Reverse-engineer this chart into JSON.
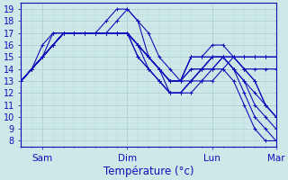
{
  "xlabel": "Température (°c)",
  "xlim": [
    0,
    72
  ],
  "ylim": [
    7.5,
    19.5
  ],
  "yticks": [
    8,
    9,
    10,
    11,
    12,
    13,
    14,
    15,
    16,
    17,
    18,
    19
  ],
  "xticks": [
    6,
    30,
    54,
    72
  ],
  "xticklabels": [
    "Sam",
    "Dim",
    "Lun",
    "Mar"
  ],
  "bg_color": "#cce8e8",
  "line_color": "#1010bb",
  "grid_major_color": "#aacccc",
  "grid_minor_color": "#bbdddd",
  "lines": [
    [
      0,
      13,
      3,
      14,
      6,
      16,
      9,
      17,
      12,
      17,
      15,
      17,
      18,
      17,
      21,
      17,
      24,
      18,
      27,
      19,
      30,
      19,
      33,
      18,
      36,
      15,
      39,
      14,
      42,
      13,
      45,
      13,
      48,
      13,
      51,
      13,
      54,
      13,
      57,
      14,
      60,
      13,
      63,
      11,
      66,
      9,
      69,
      8,
      72,
      8
    ],
    [
      0,
      13,
      3,
      14,
      6,
      15,
      9,
      17,
      12,
      17,
      15,
      17,
      18,
      17,
      21,
      17,
      24,
      17,
      27,
      18,
      30,
      19,
      33,
      18,
      36,
      17,
      39,
      15,
      42,
      14,
      45,
      13,
      48,
      14,
      51,
      14,
      54,
      14,
      57,
      15,
      60,
      14,
      63,
      12,
      66,
      10,
      69,
      9,
      72,
      8
    ],
    [
      0,
      13,
      3,
      14,
      6,
      15,
      9,
      16,
      12,
      17,
      15,
      17,
      18,
      17,
      21,
      17,
      24,
      17,
      27,
      17,
      30,
      17,
      33,
      16,
      36,
      15,
      39,
      14,
      42,
      13,
      45,
      13,
      48,
      14,
      51,
      14,
      54,
      14,
      57,
      15,
      60,
      14,
      63,
      13,
      66,
      11,
      69,
      10,
      72,
      9
    ],
    [
      0,
      13,
      3,
      14,
      6,
      15,
      9,
      16,
      12,
      17,
      15,
      17,
      18,
      17,
      21,
      17,
      24,
      17,
      27,
      17,
      30,
      17,
      33,
      16,
      36,
      15,
      39,
      14,
      42,
      13,
      45,
      13,
      48,
      15,
      51,
      15,
      54,
      15,
      57,
      15,
      60,
      14,
      63,
      13,
      66,
      12,
      69,
      11,
      72,
      10
    ],
    [
      0,
      13,
      3,
      14,
      6,
      15,
      9,
      16,
      12,
      17,
      15,
      17,
      18,
      17,
      21,
      17,
      24,
      17,
      27,
      17,
      30,
      17,
      33,
      16,
      36,
      15,
      39,
      14,
      42,
      13,
      45,
      13,
      48,
      15,
      51,
      15,
      54,
      15,
      57,
      15,
      60,
      15,
      63,
      14,
      66,
      13,
      69,
      11,
      72,
      10
    ],
    [
      0,
      13,
      3,
      14,
      6,
      15,
      9,
      16,
      12,
      17,
      15,
      17,
      18,
      17,
      21,
      17,
      24,
      17,
      27,
      17,
      30,
      17,
      33,
      16,
      36,
      15,
      39,
      14,
      42,
      13,
      45,
      13,
      48,
      15,
      51,
      15,
      54,
      16,
      57,
      16,
      60,
      15,
      63,
      14,
      66,
      13,
      69,
      11,
      72,
      10
    ],
    [
      0,
      13,
      3,
      14,
      6,
      15,
      9,
      16,
      12,
      17,
      15,
      17,
      18,
      17,
      21,
      17,
      24,
      17,
      27,
      17,
      30,
      17,
      33,
      16,
      36,
      15,
      39,
      14,
      42,
      12,
      45,
      12,
      48,
      13,
      51,
      14,
      54,
      15,
      57,
      15,
      60,
      15,
      63,
      14,
      66,
      14,
      69,
      14,
      72,
      14
    ],
    [
      0,
      13,
      3,
      14,
      6,
      15,
      9,
      16,
      12,
      17,
      15,
      17,
      18,
      17,
      21,
      17,
      24,
      17,
      27,
      17,
      30,
      17,
      33,
      16,
      36,
      14,
      39,
      13,
      42,
      12,
      45,
      12,
      48,
      13,
      51,
      14,
      54,
      15,
      57,
      15,
      60,
      15,
      63,
      15,
      66,
      15,
      69,
      15,
      72,
      15
    ],
    [
      0,
      13,
      3,
      14,
      6,
      15,
      9,
      16,
      12,
      17,
      15,
      17,
      18,
      17,
      21,
      17,
      24,
      17,
      27,
      17,
      30,
      17,
      33,
      15,
      36,
      14,
      39,
      13,
      42,
      12,
      45,
      12,
      48,
      13,
      51,
      14,
      54,
      15,
      57,
      15,
      60,
      15,
      63,
      15,
      66,
      15,
      69,
      15,
      72,
      15
    ],
    [
      0,
      13,
      3,
      14,
      6,
      15,
      9,
      16,
      12,
      17,
      15,
      17,
      18,
      17,
      21,
      17,
      24,
      17,
      27,
      17,
      30,
      17,
      33,
      15,
      36,
      14,
      39,
      13,
      42,
      12,
      45,
      12,
      48,
      12,
      51,
      13,
      54,
      14,
      57,
      14,
      60,
      15,
      63,
      15,
      66,
      15,
      69,
      15,
      72,
      15
    ]
  ]
}
